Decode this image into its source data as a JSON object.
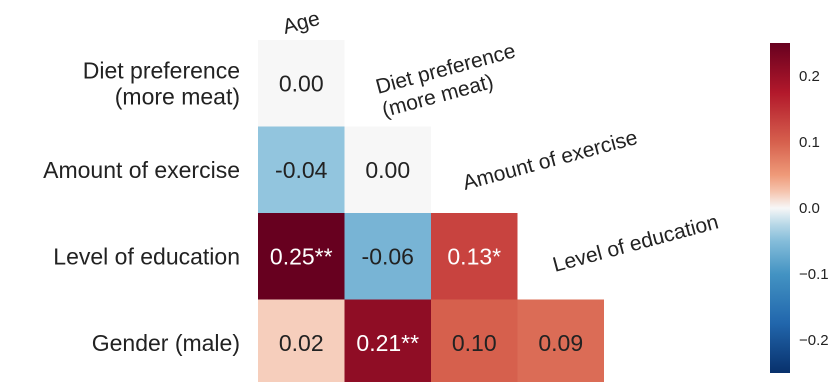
{
  "chart_data": {
    "type": "heatmap",
    "title": "",
    "column_labels": [
      "Age",
      "Diet preference\n(more meat)",
      "Amount of exercise",
      "Level of education"
    ],
    "row_labels": [
      "Diet preference\n(more meat)",
      "Amount of exercise",
      "Level of education",
      "Gender (male)"
    ],
    "cells": [
      [
        {
          "value": 0.0,
          "label": "0.00"
        }
      ],
      [
        {
          "value": -0.04,
          "label": "-0.04"
        },
        {
          "value": 0.0,
          "label": "0.00"
        }
      ],
      [
        {
          "value": 0.25,
          "label": "0.25**"
        },
        {
          "value": -0.06,
          "label": "-0.06"
        },
        {
          "value": 0.13,
          "label": "0.13*"
        }
      ],
      [
        {
          "value": 0.02,
          "label": "0.02"
        },
        {
          "value": 0.21,
          "label": "0.21**"
        },
        {
          "value": 0.1,
          "label": "0.10"
        },
        {
          "value": 0.09,
          "label": "0.09"
        }
      ]
    ],
    "colorbar": {
      "min": -0.25,
      "max": 0.25,
      "ticks": [
        0.2,
        0.1,
        0.0,
        -0.1,
        -0.2
      ],
      "tick_labels": [
        "0.2",
        "0.1",
        "0.0",
        "−0.1",
        "−0.2"
      ],
      "colormap": "diverging blue-white-red",
      "low_color": "#08306b",
      "mid_color": "#f7f7f7",
      "high_color": "#67001f"
    }
  }
}
